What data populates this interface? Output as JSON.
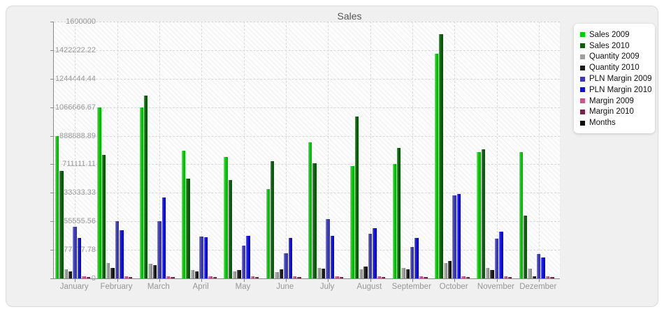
{
  "title": "Sales",
  "colors": {
    "page_bg": "#ffffff",
    "panel_bg": "#f0f0f0",
    "panel_border": "#dadada",
    "plot_bg": "#fcfcfc",
    "grid": "#d8d8d8",
    "axis": "#8a8a8a",
    "axis_label": "#999999",
    "title_text": "#555555",
    "legend_bg": "#ffffff",
    "legend_text": "#111111"
  },
  "chart_data": {
    "type": "bar",
    "title": "Sales",
    "categories": [
      "January",
      "February",
      "March",
      "April",
      "May",
      "June",
      "July",
      "August",
      "September",
      "October",
      "November",
      "Dezember"
    ],
    "series": [
      {
        "name": "Sales 2009",
        "color": "#00cc00",
        "color_light": "#8ae58a",
        "color_dark": "#169616",
        "values": [
          885000,
          1065000,
          1066000,
          795000,
          755000,
          558000,
          850000,
          700000,
          715000,
          1400000,
          785000,
          785000
        ]
      },
      {
        "name": "Sales 2010",
        "color": "#0b5c0b",
        "color_light": "#58a058",
        "color_dark": "#0a4a0a",
        "values": [
          670000,
          770000,
          1140000,
          620000,
          612000,
          732000,
          719000,
          1007000,
          815000,
          1522000,
          806000,
          390000
        ]
      },
      {
        "name": "Quantity 2009",
        "color": "#9e9e9e",
        "color_light": "#d2d2d2",
        "color_dark": "#787878",
        "values": [
          57000,
          96000,
          92000,
          52000,
          44000,
          39000,
          65000,
          57000,
          65000,
          96000,
          65000,
          61000
        ]
      },
      {
        "name": "Quantity 2010",
        "color": "#1c1c1c",
        "color_light": "#6a6a6a",
        "color_dark": "#000000",
        "values": [
          44000,
          65000,
          83000,
          44000,
          52000,
          55000,
          61000,
          74000,
          57000,
          109000,
          52000,
          13000
        ]
      },
      {
        "name": "PLN Margin 2009",
        "color": "#3939b8",
        "color_light": "#9090d8",
        "color_dark": "#32329a",
        "values": [
          322000,
          355000,
          355000,
          260000,
          205000,
          157000,
          371000,
          279000,
          196000,
          519000,
          249000,
          153000
        ]
      },
      {
        "name": "PLN Margin 2010",
        "color": "#0f0fe0",
        "color_light": "#6a6aee",
        "color_dark": "#0000b0",
        "values": [
          253000,
          300000,
          506000,
          255000,
          266000,
          253000,
          266000,
          314000,
          253000,
          527000,
          292000,
          131000
        ]
      },
      {
        "name": "Margin 2009",
        "color": "#cc5585",
        "color_light": "#f090b8",
        "color_dark": "#b03868",
        "values": [
          14000,
          15000,
          14000,
          13000,
          13000,
          13000,
          14000,
          14000,
          13000,
          14000,
          13000,
          13000
        ]
      },
      {
        "name": "Margin 2010",
        "color": "#7a2145",
        "color_light": "#a05070",
        "color_dark": "#501030",
        "values": [
          9000,
          10000,
          9000,
          9000,
          9000,
          9000,
          9000,
          9000,
          9000,
          10000,
          9000,
          9000
        ]
      },
      {
        "name": "Months",
        "color": "#0a0a0a",
        "color_light": "#555555",
        "color_dark": "#000000",
        "values": [
          0,
          0,
          0,
          0,
          0,
          0,
          0,
          0,
          0,
          0,
          0,
          0
        ]
      }
    ],
    "ylim": [
      0,
      1600000
    ],
    "y_ticks": [
      {
        "label": "1600000",
        "value": 1600000
      },
      {
        "label": "1422222.22",
        "value": 1422222.22
      },
      {
        "label": "1244444.44",
        "value": 1244444.44
      },
      {
        "label": "1066666.67",
        "value": 1066666.67
      },
      {
        "label": "888888.89",
        "value": 888888.89
      },
      {
        "label": "711111.11",
        "value": 711111.11
      },
      {
        "label": "533333.33",
        "value": 533333.33
      },
      {
        "label": "355555.56",
        "value": 355555.56
      },
      {
        "label": "177777.78",
        "value": 177777.78
      },
      {
        "label": "0",
        "value": 0
      }
    ],
    "grid": "dashed horizontal at y ticks, dashed vertical at category centers",
    "legend_position": "right",
    "plot_background": "white with light diagonal hatch"
  }
}
